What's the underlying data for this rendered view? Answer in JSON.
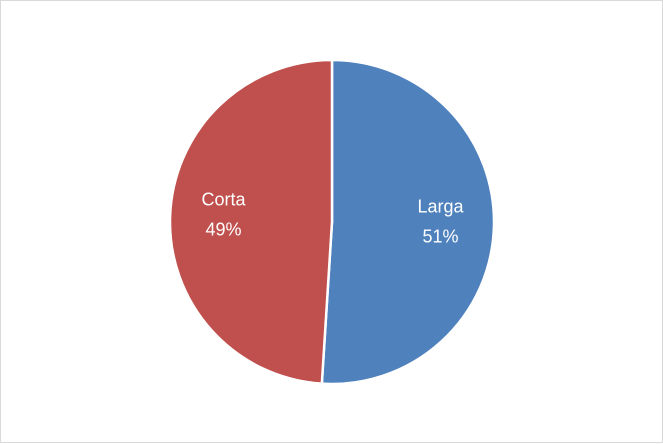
{
  "chart_data": {
    "type": "pie",
    "title": "",
    "slices": [
      {
        "label": "Larga",
        "value": 51,
        "percent_label": "51%",
        "color": "#4F81BD"
      },
      {
        "label": "Corta",
        "value": 49,
        "percent_label": "49%",
        "color": "#C0504D"
      }
    ],
    "start_angle_deg": 0,
    "direction": "clockwise",
    "legend": "none",
    "data_labels": "inside"
  }
}
